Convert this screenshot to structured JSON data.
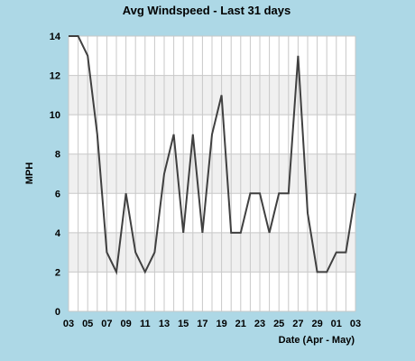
{
  "chart_data": {
    "type": "line",
    "title": "Avg Windspeed - Last 31 days",
    "ylabel": "MPH",
    "xlabel": "Date (Apr - May)",
    "ylim": [
      0,
      14
    ],
    "yticks": [
      0,
      2,
      4,
      6,
      8,
      10,
      12,
      14
    ],
    "x_start_day": 3,
    "xtick_labels": [
      "03",
      "05",
      "07",
      "09",
      "11",
      "13",
      "15",
      "17",
      "19",
      "21",
      "23",
      "25",
      "27",
      "29",
      "01",
      "03"
    ],
    "x": [
      "Apr 3",
      "Apr 4",
      "Apr 5",
      "Apr 6",
      "Apr 7",
      "Apr 8",
      "Apr 9",
      "Apr 10",
      "Apr 11",
      "Apr 12",
      "Apr 13",
      "Apr 14",
      "Apr 15",
      "Apr 16",
      "Apr 17",
      "Apr 18",
      "Apr 19",
      "Apr 20",
      "Apr 21",
      "Apr 22",
      "Apr 23",
      "Apr 24",
      "Apr 25",
      "Apr 26",
      "Apr 27",
      "Apr 28",
      "Apr 29",
      "Apr 30",
      "May 1",
      "May 2",
      "May 3"
    ],
    "series": [
      {
        "values": [
          14,
          14,
          13,
          9,
          3,
          2,
          6,
          3,
          2,
          3,
          7,
          9,
          4,
          9,
          4,
          9,
          11,
          4,
          4,
          6,
          6,
          4,
          6,
          6,
          13,
          5,
          2,
          2,
          3,
          3,
          6
        ]
      }
    ],
    "grid": true,
    "colors": {
      "background": "#add8e6",
      "plot": "#ffffff",
      "band": "#f0f0f0",
      "grid": "#c8c8c8",
      "line": "#404040"
    }
  }
}
